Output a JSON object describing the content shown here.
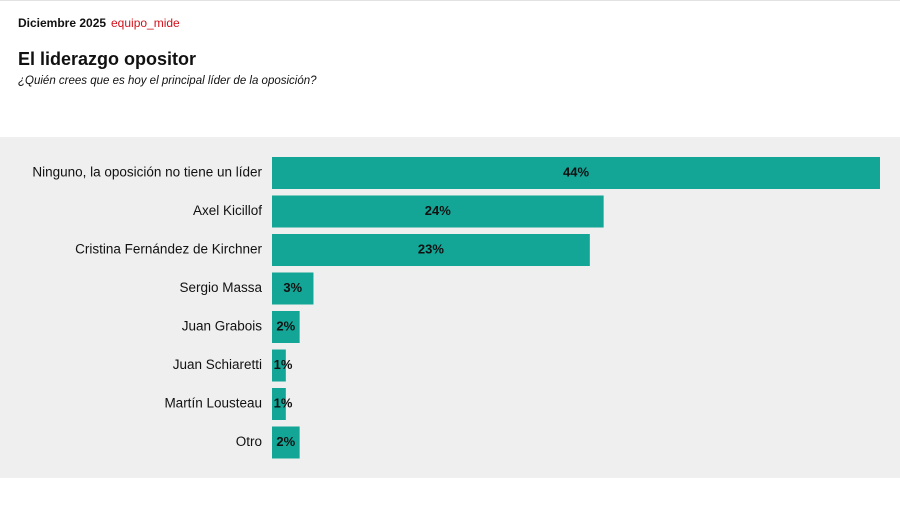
{
  "chart_data": {
    "type": "bar",
    "orientation": "horizontal",
    "date": "Diciembre 2025",
    "source": "equipo_mide",
    "title": "El liderazgo opositor",
    "subtitle": "¿Quién crees que es hoy el principal líder de la oposición?",
    "categories": [
      "Ninguno, la oposición no tiene un líder",
      "Axel Kicillof",
      "Cristina Fernández de Kirchner",
      "Sergio Massa",
      "Juan Grabois",
      "Juan Schiaretti",
      "Martín Lousteau",
      "Otro"
    ],
    "values": [
      44,
      24,
      23,
      3,
      2,
      1,
      1,
      2
    ],
    "value_labels": [
      "44%",
      "24%",
      "23%",
      "3%",
      "2%",
      "1%",
      "1%",
      "2%"
    ],
    "color": "#13a596",
    "source_color": "#d0121b"
  }
}
